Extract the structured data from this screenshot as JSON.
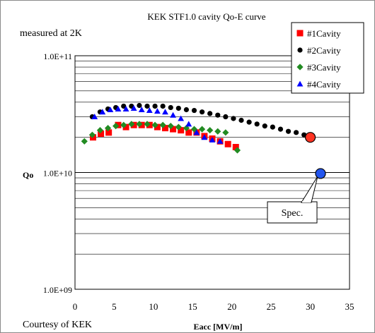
{
  "chart_data": {
    "type": "scatter",
    "title": "KEK STF1.0 cavity Qo-E curve",
    "subtitle": "measured at 2K",
    "credit": "Courtesy of KEK",
    "xlabel": "Eacc [MV/m]",
    "ylabel": "Qo",
    "xlim": [
      0,
      35
    ],
    "ylim": [
      1000000000.0,
      100000000000.0
    ],
    "yscale": "log",
    "x_ticks": [
      "0",
      "5",
      "10",
      "15",
      "20",
      "25",
      "30",
      "35"
    ],
    "y_ticks": [
      "1.0E+09",
      "1.0E+10",
      "1.0E+11"
    ],
    "grid": true,
    "legend_position": "top-right",
    "series": [
      {
        "name": "#1Cavity",
        "color": "#ff0000",
        "marker": "square",
        "points": [
          [
            2.3,
            20000000000.0
          ],
          [
            3.3,
            21500000000.0
          ],
          [
            4.3,
            22000000000.0
          ],
          [
            5.5,
            25500000000.0
          ],
          [
            6.5,
            24500000000.0
          ],
          [
            7.5,
            25500000000.0
          ],
          [
            8.5,
            25500000000.0
          ],
          [
            9.5,
            25500000000.0
          ],
          [
            10.5,
            24500000000.0
          ],
          [
            11.5,
            24000000000.0
          ],
          [
            12.5,
            23500000000.0
          ],
          [
            13.5,
            23000000000.0
          ],
          [
            14.5,
            22000000000.0
          ],
          [
            15.5,
            22000000000.0
          ],
          [
            16.5,
            20500000000.0
          ],
          [
            17.5,
            19500000000.0
          ],
          [
            18.5,
            18500000000.0
          ],
          [
            19.5,
            17500000000.0
          ],
          [
            20.5,
            16500000000.0
          ]
        ]
      },
      {
        "name": "#2Cavity",
        "color": "#000000",
        "marker": "circle",
        "points": [
          [
            2.2,
            30000000000.0
          ],
          [
            3.2,
            33000000000.0
          ],
          [
            4.2,
            35000000000.0
          ],
          [
            5.2,
            36000000000.0
          ],
          [
            6.2,
            37000000000.0
          ],
          [
            7.2,
            37000000000.0
          ],
          [
            8.2,
            37500000000.0
          ],
          [
            9.2,
            37000000000.0
          ],
          [
            10.2,
            37000000000.0
          ],
          [
            11.2,
            37000000000.0
          ],
          [
            12.2,
            36000000000.0
          ],
          [
            13.2,
            35500000000.0
          ],
          [
            14.2,
            34500000000.0
          ],
          [
            15.2,
            34000000000.0
          ],
          [
            16.2,
            33000000000.0
          ],
          [
            17.2,
            32000000000.0
          ],
          [
            18.2,
            31000000000.0
          ],
          [
            19.2,
            30000000000.0
          ],
          [
            20.2,
            29000000000.0
          ],
          [
            21.2,
            28000000000.0
          ],
          [
            22.2,
            27000000000.0
          ],
          [
            23.2,
            26000000000.0
          ],
          [
            24.2,
            25000000000.0
          ],
          [
            25.2,
            24500000000.0
          ],
          [
            26.2,
            23500000000.0
          ],
          [
            27.2,
            22500000000.0
          ],
          [
            28.2,
            22000000000.0
          ],
          [
            29.2,
            21000000000.0
          ],
          [
            29.9,
            20000000000.0
          ]
        ]
      },
      {
        "name": "#3Cavity",
        "color": "#228b22",
        "marker": "diamond",
        "points": [
          [
            1.2,
            18500000000.0
          ],
          [
            2.2,
            21000000000.0
          ],
          [
            3.2,
            23000000000.0
          ],
          [
            4.2,
            24000000000.0
          ],
          [
            5.2,
            25000000000.0
          ],
          [
            6.2,
            25500000000.0
          ],
          [
            7.2,
            26000000000.0
          ],
          [
            8.2,
            26000000000.0
          ],
          [
            9.2,
            26000000000.0
          ],
          [
            10.2,
            25500000000.0
          ],
          [
            11.2,
            25500000000.0
          ],
          [
            12.2,
            25000000000.0
          ],
          [
            13.2,
            24500000000.0
          ],
          [
            14.2,
            24000000000.0
          ],
          [
            15.2,
            23500000000.0
          ],
          [
            16.2,
            23500000000.0
          ],
          [
            17.2,
            23000000000.0
          ],
          [
            18.2,
            22500000000.0
          ],
          [
            19.2,
            22000000000.0
          ],
          [
            20.7,
            15500000000.0
          ]
        ]
      },
      {
        "name": "#4Cavity",
        "color": "#0000ff",
        "marker": "triangle",
        "points": [
          [
            2.5,
            30000000000.0
          ],
          [
            3.5,
            33000000000.0
          ],
          [
            4.5,
            34500000000.0
          ],
          [
            5.5,
            35000000000.0
          ],
          [
            6.5,
            35000000000.0
          ],
          [
            7.5,
            35500000000.0
          ],
          [
            8.5,
            34500000000.0
          ],
          [
            9.5,
            34000000000.0
          ],
          [
            10.5,
            33500000000.0
          ],
          [
            11.5,
            33000000000.0
          ],
          [
            12.5,
            31000000000.0
          ],
          [
            13.5,
            29000000000.0
          ],
          [
            14.5,
            26000000000.0
          ],
          [
            15.5,
            22000000000.0
          ],
          [
            16.5,
            20000000000.0
          ],
          [
            17.5,
            19000000000.0
          ],
          [
            18.5,
            18500000000.0
          ]
        ]
      }
    ],
    "highlight_points": [
      {
        "label": "",
        "x": 30.0,
        "y": 20000000000.0,
        "color": "#ff3322",
        "outline": "#000000"
      },
      {
        "label": "Spec.",
        "x": 31.3,
        "y": 9800000000.0,
        "color": "#2255ee",
        "outline": "#000000"
      }
    ]
  }
}
